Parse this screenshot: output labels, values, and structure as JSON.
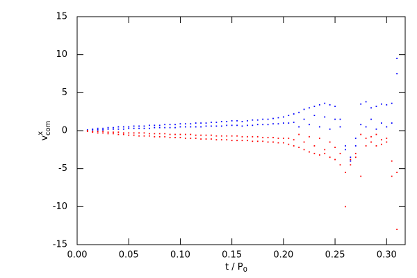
{
  "chart_data": {
    "type": "scatter",
    "xlabel": {
      "base": "t / P",
      "sub": "0"
    },
    "ylabel": {
      "base": "v",
      "sup": "x",
      "sub": "com"
    },
    "xlim": [
      0,
      0.318
    ],
    "ylim": [
      -15,
      15
    ],
    "xticks": [
      {
        "value": 0,
        "label": "0.00"
      },
      {
        "value": 0.05,
        "label": "0.05"
      },
      {
        "value": 0.1,
        "label": "0.10"
      },
      {
        "value": 0.15,
        "label": "0.15"
      },
      {
        "value": 0.2,
        "label": "0.20"
      },
      {
        "value": 0.25,
        "label": "0.25"
      },
      {
        "value": 0.3,
        "label": "0.30"
      }
    ],
    "yticks": [
      -15,
      -10,
      -5,
      0,
      5,
      10,
      15
    ],
    "x": [
      0.01,
      0.015,
      0.02,
      0.025,
      0.03,
      0.035,
      0.04,
      0.045,
      0.05,
      0.055,
      0.06,
      0.065,
      0.07,
      0.075,
      0.08,
      0.085,
      0.09,
      0.095,
      0.1,
      0.105,
      0.11,
      0.115,
      0.12,
      0.125,
      0.13,
      0.135,
      0.14,
      0.145,
      0.15,
      0.155,
      0.16,
      0.165,
      0.17,
      0.175,
      0.18,
      0.185,
      0.19,
      0.195,
      0.2,
      0.205,
      0.21,
      0.215,
      0.22,
      0.225,
      0.23,
      0.235,
      0.24,
      0.245,
      0.25,
      0.255,
      0.26,
      0.265,
      0.27,
      0.275,
      0.28,
      0.285,
      0.29,
      0.295,
      0.3,
      0.305,
      0.31
    ],
    "series": [
      {
        "color": "#0000ff",
        "values": [
          0.1,
          0.2,
          0.3,
          0.3,
          0.4,
          0.4,
          0.5,
          0.5,
          0.5,
          0.6,
          0.6,
          0.6,
          0.7,
          0.7,
          0.7,
          0.8,
          0.8,
          0.8,
          0.9,
          0.9,
          0.9,
          1.0,
          1.0,
          1.0,
          1.1,
          1.1,
          1.2,
          1.2,
          1.3,
          1.3,
          1.2,
          1.3,
          1.4,
          1.4,
          1.5,
          1.5,
          1.6,
          1.7,
          1.8,
          2.0,
          2.2,
          2.4,
          2.8,
          3.0,
          3.2,
          3.4,
          3.6,
          3.4,
          3.2,
          1.5,
          -2.5,
          -3.5,
          -1.0,
          3.5,
          3.8,
          3.0,
          3.2,
          3.5,
          3.4,
          3.6,
          9.5
        ]
      },
      {
        "color": "#0000ff",
        "values": [
          0.0,
          0.1,
          0.1,
          0.1,
          0.2,
          0.2,
          0.2,
          0.2,
          0.3,
          0.3,
          0.3,
          0.3,
          0.3,
          0.4,
          0.4,
          0.4,
          0.4,
          0.4,
          0.5,
          0.5,
          0.5,
          0.5,
          0.5,
          0.6,
          0.6,
          0.6,
          0.6,
          0.7,
          0.7,
          0.7,
          0.6,
          0.7,
          0.7,
          0.8,
          0.8,
          0.8,
          0.9,
          0.9,
          1.0,
          1.0,
          1.1,
          0.5,
          1.5,
          0.8,
          2.0,
          0.5,
          1.8,
          0.2,
          1.5,
          0.5,
          -2.0,
          -4.0,
          -2.0,
          0.8,
          0.5,
          1.5,
          0.2,
          1.0,
          0.5,
          1.0,
          7.5
        ]
      },
      {
        "color": "#ff0000",
        "values": [
          0,
          -0.1,
          -0.1,
          -0.1,
          -0.2,
          -0.2,
          -0.2,
          -0.3,
          -0.3,
          -0.3,
          -0.3,
          -0.3,
          -0.4,
          -0.4,
          -0.4,
          -0.4,
          -0.5,
          -0.5,
          -0.5,
          -0.5,
          -0.5,
          -0.6,
          -0.6,
          -0.6,
          -0.6,
          -0.7,
          -0.7,
          -0.7,
          -0.7,
          -0.7,
          -0.8,
          -0.8,
          -0.8,
          -0.8,
          -0.9,
          -0.9,
          -0.9,
          -1.0,
          -1.0,
          -1.0,
          -1.2,
          -0.5,
          -1.5,
          -0.8,
          -2.0,
          -1.0,
          -2.5,
          -1.5,
          -2.2,
          -3.0,
          -10.0,
          -3.8,
          -3.0,
          -0.5,
          -1.0,
          -0.8,
          -0.5,
          -1.2,
          -1.0,
          -4.0,
          -13.0
        ]
      },
      {
        "color": "#ff0000",
        "values": [
          -0.1,
          -0.2,
          -0.3,
          -0.3,
          -0.4,
          -0.4,
          -0.5,
          -0.5,
          -0.6,
          -0.6,
          -0.7,
          -0.7,
          -0.7,
          -0.8,
          -0.8,
          -0.8,
          -0.9,
          -0.9,
          -0.9,
          -1.0,
          -1.0,
          -1.0,
          -1.1,
          -1.1,
          -1.1,
          -1.2,
          -1.2,
          -1.2,
          -1.3,
          -1.3,
          -1.3,
          -1.3,
          -1.4,
          -1.4,
          -1.4,
          -1.5,
          -1.5,
          -1.6,
          -1.6,
          -1.8,
          -2.0,
          -2.2,
          -2.5,
          -2.8,
          -3.0,
          -3.2,
          -3.0,
          -3.5,
          -3.8,
          -4.5,
          -5.5,
          -4.5,
          -3.5,
          -6.0,
          -2.0,
          -1.5,
          -2.0,
          -1.8,
          -1.5,
          -6.0,
          -5.5
        ]
      }
    ]
  }
}
